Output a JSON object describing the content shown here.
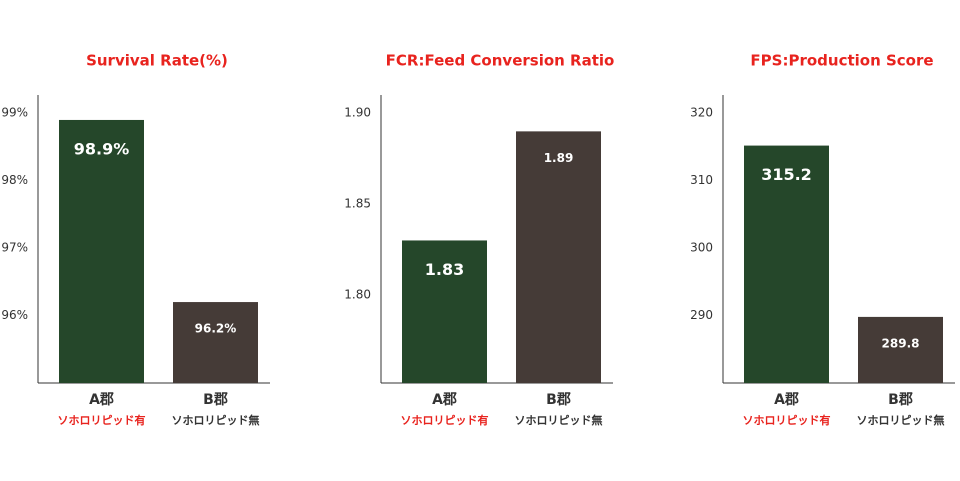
{
  "chart_data": [
    {
      "type": "bar",
      "title": "Survival Rate(%)",
      "categories": [
        "A郡",
        "B郡"
      ],
      "category_notes": [
        "ソホロリピッド有",
        "ソホロリピッド無"
      ],
      "category_note_colors": [
        "#e8231e",
        "#333333"
      ],
      "values": [
        98.9,
        96.2
      ],
      "value_labels": [
        "98.9%",
        "96.2%"
      ],
      "colors": [
        "#25472a",
        "#453b37"
      ],
      "ylim": [
        95,
        99.27
      ],
      "yticks": [
        {
          "value": 96,
          "label": "96%"
        },
        {
          "value": 97,
          "label": "97%"
        },
        {
          "value": 98,
          "label": "98%"
        },
        {
          "value": 99,
          "label": "99%"
        }
      ]
    },
    {
      "type": "bar",
      "title": "FCR:Feed Conversion Ratio",
      "categories": [
        "A郡",
        "B郡"
      ],
      "category_notes": [
        "ソホロリピッド有",
        "ソホロリピッド無"
      ],
      "category_note_colors": [
        "#e8231e",
        "#333333"
      ],
      "values": [
        1.83,
        1.89
      ],
      "colors": [
        "#25472a",
        "#453b37"
      ],
      "ylim": [
        1.7516,
        1.91
      ],
      "yticks": [
        {
          "value": 1.8,
          "label": "1.80"
        },
        1.85,
        {
          "value": 1.9,
          "label": "1.90"
        }
      ]
    },
    {
      "type": "bar",
      "title": "FPS:Production Score",
      "categories": [
        "A郡",
        "B郡"
      ],
      "category_notes": [
        "ソホロリピッド有",
        "ソホロリピッド無"
      ],
      "category_note_colors": [
        "#e8231e",
        "#333333"
      ],
      "values": [
        315.2,
        289.8
      ],
      "colors": [
        "#25472a",
        "#453b37"
      ],
      "ylim": [
        280,
        322.7
      ],
      "yticks": [
        290,
        300,
        310,
        320
      ]
    }
  ]
}
